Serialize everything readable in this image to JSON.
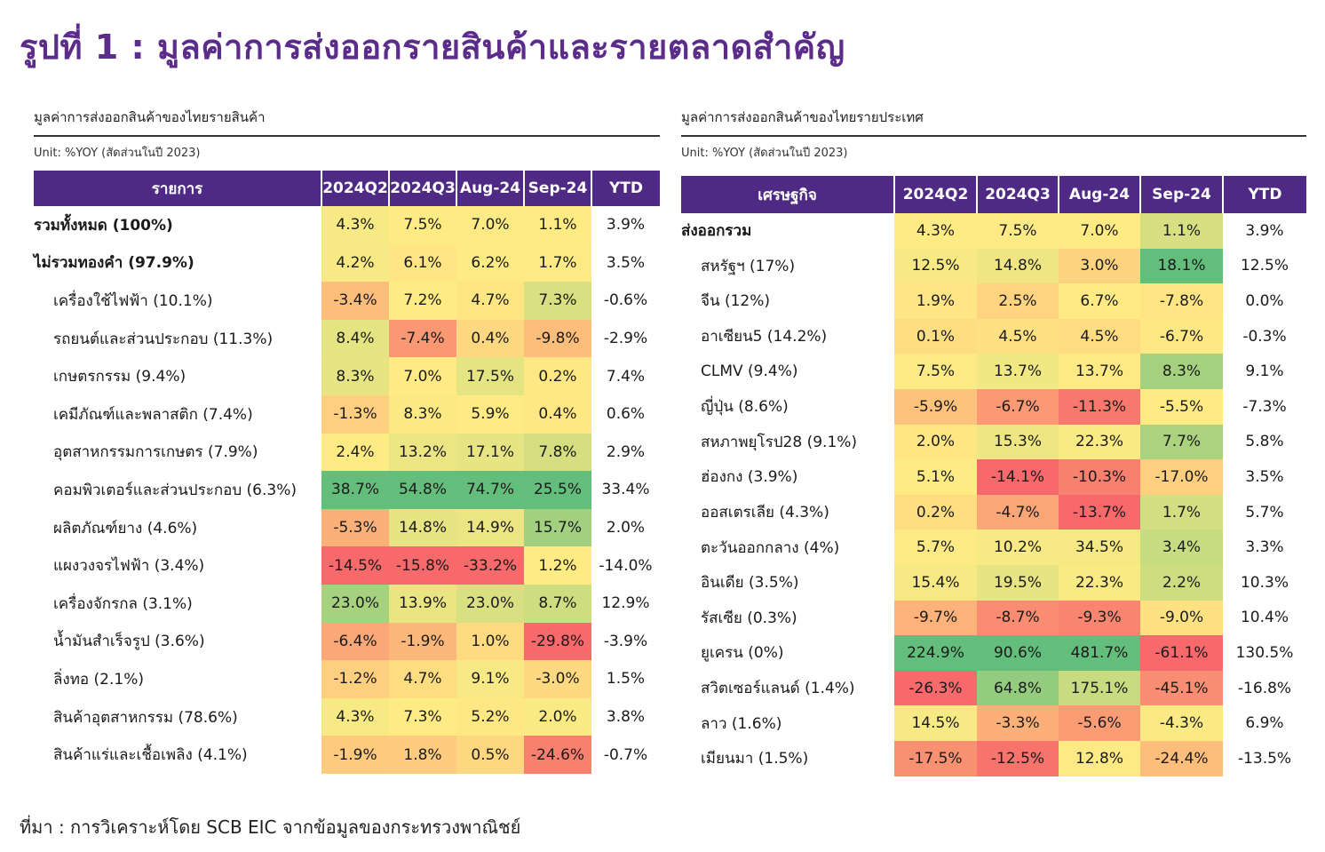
{
  "title": "รูปที่ 1 : มูลค่าการส่งออกรายสินค้าและรายตลาดสำคัญ",
  "source": "ที่มา : การวิเคราะห์โดย SCB EIC จากข้อมูลของกระทรวงพาณิชย์",
  "colors": {
    "accent": "#5b2c8a",
    "header_bg": "#4e2a84",
    "scale_low": "#f8696b",
    "scale_mid": "#ffeb84",
    "scale_high": "#63be7b"
  },
  "left_table": {
    "title": "มูลค่าการส่งออกสินค้าของไทยรายสินค้า",
    "unit": "Unit: %YOY (สัดส่วนในปี 2023)",
    "headers": [
      "รายการ",
      "2024Q2",
      "2024Q3",
      "Aug-24",
      "Sep-24",
      "YTD"
    ],
    "rows": [
      {
        "label": "รวมทั้งหมด (100%)",
        "style": "bold",
        "values": [
          "4.3%",
          "7.5%",
          "7.0%",
          "1.1%",
          "3.9%"
        ],
        "nums": [
          4.3,
          7.5,
          7.0,
          1.1
        ]
      },
      {
        "label": "ไม่รวมทองคำ (97.9%)",
        "style": "bold",
        "values": [
          "4.2%",
          "6.1%",
          "6.2%",
          "1.7%",
          "3.5%"
        ],
        "nums": [
          4.2,
          6.1,
          6.2,
          1.7
        ]
      },
      {
        "label": "เครื่องใช้ไฟฟ้า (10.1%)",
        "style": "sub",
        "values": [
          "-3.4%",
          "7.2%",
          "4.7%",
          "7.3%",
          "-0.6%"
        ],
        "nums": [
          -3.4,
          7.2,
          4.7,
          7.3
        ]
      },
      {
        "label": "รถยนต์และส่วนประกอบ (11.3%)",
        "style": "sub",
        "values": [
          "8.4%",
          "-7.4%",
          "0.4%",
          "-9.8%",
          "-2.9%"
        ],
        "nums": [
          8.4,
          -7.4,
          0.4,
          -9.8
        ]
      },
      {
        "label": "เกษตรกรรม (9.4%)",
        "style": "sub",
        "values": [
          "8.3%",
          "7.0%",
          "17.5%",
          "0.2%",
          "7.4%"
        ],
        "nums": [
          8.3,
          7.0,
          17.5,
          0.2
        ]
      },
      {
        "label": "เคมีภัณฑ์และพลาสติก (7.4%)",
        "style": "sub",
        "values": [
          "-1.3%",
          "8.3%",
          "5.9%",
          "0.4%",
          "0.6%"
        ],
        "nums": [
          -1.3,
          8.3,
          5.9,
          0.4
        ]
      },
      {
        "label": "อุตสาหกรรมการเกษตร (7.9%)",
        "style": "sub",
        "values": [
          "2.4%",
          "13.2%",
          "17.1%",
          "7.8%",
          "2.9%"
        ],
        "nums": [
          2.4,
          13.2,
          17.1,
          7.8
        ]
      },
      {
        "label": "คอมพิวเตอร์และส่วนประกอบ (6.3%)",
        "style": "sub",
        "values": [
          "38.7%",
          "54.8%",
          "74.7%",
          "25.5%",
          "33.4%"
        ],
        "nums": [
          38.7,
          54.8,
          74.7,
          25.5
        ]
      },
      {
        "label": "ผลิตภัณฑ์ยาง (4.6%)",
        "style": "sub",
        "values": [
          "-5.3%",
          "14.8%",
          "14.9%",
          "15.7%",
          "2.0%"
        ],
        "nums": [
          -5.3,
          14.8,
          14.9,
          15.7
        ]
      },
      {
        "label": "แผงวงจรไฟฟ้า (3.4%)",
        "style": "sub",
        "values": [
          "-14.5%",
          "-15.8%",
          "-33.2%",
          "1.2%",
          "-14.0%"
        ],
        "nums": [
          -14.5,
          -15.8,
          -33.2,
          1.2
        ]
      },
      {
        "label": "เครื่องจักรกล (3.1%)",
        "style": "sub",
        "values": [
          "23.0%",
          "13.9%",
          "23.0%",
          "8.7%",
          "12.9%"
        ],
        "nums": [
          23.0,
          13.9,
          23.0,
          8.7
        ]
      },
      {
        "label": "น้ำมันสำเร็จรูป (3.6%)",
        "style": "sub",
        "values": [
          "-6.4%",
          "-1.9%",
          "1.0%",
          "-29.8%",
          "-3.9%"
        ],
        "nums": [
          -6.4,
          -1.9,
          1.0,
          -29.8
        ]
      },
      {
        "label": "ลิ่งทอ (2.1%)",
        "style": "sub",
        "values": [
          "-1.2%",
          "4.7%",
          "9.1%",
          "-3.0%",
          "1.5%"
        ],
        "nums": [
          -1.2,
          4.7,
          9.1,
          -3.0
        ]
      },
      {
        "label": "สินค้าอุตสาหกรรม (78.6%)",
        "style": "sub",
        "values": [
          "4.3%",
          "7.3%",
          "5.2%",
          "2.0%",
          "3.8%"
        ],
        "nums": [
          4.3,
          7.3,
          5.2,
          2.0
        ]
      },
      {
        "label": "สินค้าแร่และเชื้อเพลิง (4.1%)",
        "style": "sub",
        "values": [
          "-1.9%",
          "1.8%",
          "0.5%",
          "-24.6%",
          "-0.7%"
        ],
        "nums": [
          -1.9,
          1.8,
          0.5,
          -24.6
        ]
      }
    ]
  },
  "right_table": {
    "title": "มูลค่าการส่งออกสินค้าของไทยรายประเทศ",
    "unit": "Unit: %YOY (สัดส่วนในปี 2023)",
    "headers": [
      "เศรษฐกิจ",
      "2024Q2",
      "2024Q3",
      "Aug-24",
      "Sep-24",
      "YTD"
    ],
    "rows": [
      {
        "label": "ส่งออกรวม",
        "style": "bold",
        "values": [
          "4.3%",
          "7.5%",
          "7.0%",
          "1.1%",
          "3.9%"
        ],
        "nums": [
          4.3,
          7.5,
          7.0,
          1.1
        ]
      },
      {
        "label": "สหรัฐฯ (17%)",
        "style": "sub",
        "values": [
          "12.5%",
          "14.8%",
          "3.0%",
          "18.1%",
          "12.5%"
        ],
        "nums": [
          12.5,
          14.8,
          3.0,
          18.1
        ]
      },
      {
        "label": "จีน (12%)",
        "style": "sub",
        "values": [
          "1.9%",
          "2.5%",
          "6.7%",
          "-7.8%",
          "0.0%"
        ],
        "nums": [
          1.9,
          2.5,
          6.7,
          -7.8
        ]
      },
      {
        "label": "อาเซียน5 (14.2%)",
        "style": "sub",
        "values": [
          "0.1%",
          "4.5%",
          "4.5%",
          "-6.7%",
          "-0.3%"
        ],
        "nums": [
          0.1,
          4.5,
          4.5,
          -6.7
        ]
      },
      {
        "label": "CLMV (9.4%)",
        "style": "sub",
        "values": [
          "7.5%",
          "13.7%",
          "13.7%",
          "8.3%",
          "9.1%"
        ],
        "nums": [
          7.5,
          13.7,
          13.7,
          8.3
        ]
      },
      {
        "label": "ญี่ปุ่น (8.6%)",
        "style": "sub",
        "values": [
          "-5.9%",
          "-6.7%",
          "-11.3%",
          "-5.5%",
          "-7.3%"
        ],
        "nums": [
          -5.9,
          -6.7,
          -11.3,
          -5.5
        ]
      },
      {
        "label": "สหภาพยุโรป28 (9.1%)",
        "style": "sub",
        "values": [
          "2.0%",
          "15.3%",
          "22.3%",
          "7.7%",
          "5.8%"
        ],
        "nums": [
          2.0,
          15.3,
          22.3,
          7.7
        ]
      },
      {
        "label": "ฮ่องกง (3.9%)",
        "style": "sub",
        "values": [
          "5.1%",
          "-14.1%",
          "-10.3%",
          "-17.0%",
          "3.5%"
        ],
        "nums": [
          5.1,
          -14.1,
          -10.3,
          -17.0
        ]
      },
      {
        "label": "ออสเตรเลีย (4.3%)",
        "style": "sub",
        "values": [
          "0.2%",
          "-4.7%",
          "-13.7%",
          "1.7%",
          "5.7%"
        ],
        "nums": [
          0.2,
          -4.7,
          -13.7,
          1.7
        ]
      },
      {
        "label": "ตะวันออกกลาง (4%)",
        "style": "sub",
        "values": [
          "5.7%",
          "10.2%",
          "34.5%",
          "3.4%",
          "3.3%"
        ],
        "nums": [
          5.7,
          10.2,
          34.5,
          3.4
        ]
      },
      {
        "label": "อินเดีย (3.5%)",
        "style": "sub",
        "values": [
          "15.4%",
          "19.5%",
          "22.3%",
          "2.2%",
          "10.3%"
        ],
        "nums": [
          15.4,
          19.5,
          22.3,
          2.2
        ]
      },
      {
        "label": "รัสเซีย (0.3%)",
        "style": "sub",
        "values": [
          "-9.7%",
          "-8.7%",
          "-9.3%",
          "-9.0%",
          "10.4%"
        ],
        "nums": [
          -9.7,
          -8.7,
          -9.3,
          -9.0
        ]
      },
      {
        "label": "ยูเครน (0%)",
        "style": "sub",
        "values": [
          "224.9%",
          "90.6%",
          "481.7%",
          "-61.1%",
          "130.5%"
        ],
        "nums": [
          224.9,
          90.6,
          481.7,
          -61.1
        ]
      },
      {
        "label": "สวิตเซอร์แลนด์ (1.4%)",
        "style": "sub",
        "values": [
          "-26.3%",
          "64.8%",
          "175.1%",
          "-45.1%",
          "-16.8%"
        ],
        "nums": [
          -26.3,
          64.8,
          175.1,
          -45.1
        ]
      },
      {
        "label": "ลาว (1.6%)",
        "style": "sub",
        "values": [
          "14.5%",
          "-3.3%",
          "-5.6%",
          "-4.3%",
          "6.9%"
        ],
        "nums": [
          14.5,
          -3.3,
          -5.6,
          -4.3
        ]
      },
      {
        "label": "เมียนมา (1.5%)",
        "style": "sub",
        "values": [
          "-17.5%",
          "-12.5%",
          "12.8%",
          "-24.4%",
          "-13.5%"
        ],
        "nums": [
          -17.5,
          -12.5,
          12.8,
          -24.4
        ]
      }
    ]
  }
}
